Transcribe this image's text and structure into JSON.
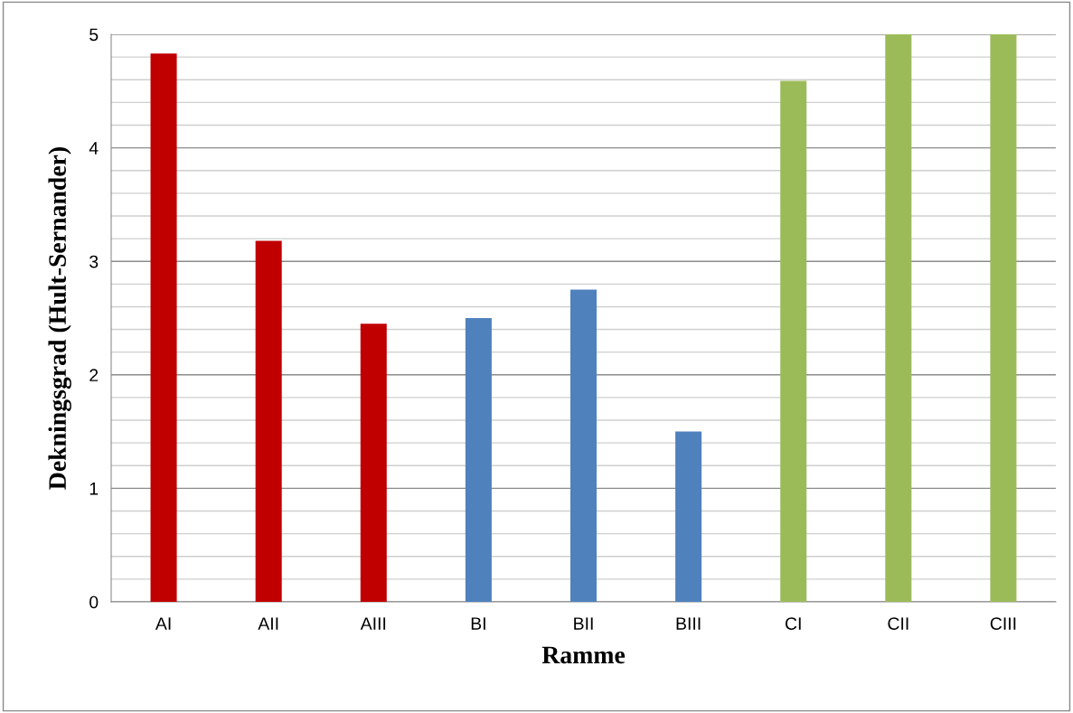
{
  "chart_data": {
    "type": "bar",
    "xlabel": "Ramme",
    "ylabel": "Dekningsgrad (Hult-Sernander)",
    "categories": [
      "AI",
      "AII",
      "AIII",
      "BI",
      "BII",
      "BIII",
      "CI",
      "CII",
      "CIII"
    ],
    "values": [
      4.83,
      3.18,
      2.45,
      2.5,
      2.75,
      1.5,
      4.59,
      5,
      5
    ],
    "colors": [
      "#c00000",
      "#c00000",
      "#c00000",
      "#4f81bd",
      "#4f81bd",
      "#4f81bd",
      "#9bbb59",
      "#9bbb59",
      "#9bbb59"
    ],
    "ylim": [
      0,
      5
    ],
    "yticks": [
      0,
      {
        "value": 0.2,
        "label": null
      },
      {
        "value": 0.4,
        "label": null
      },
      {
        "value": 0.6,
        "label": null
      },
      {
        "value": 0.8,
        "label": null
      },
      1,
      {
        "value": 1.2,
        "label": null
      },
      {
        "value": 1.4,
        "label": null
      },
      {
        "value": 1.6,
        "label": null
      },
      {
        "value": 1.8,
        "label": null
      },
      2,
      {
        "value": 2.2,
        "label": null
      },
      {
        "value": 2.4,
        "label": null
      },
      {
        "value": 2.6,
        "label": null
      },
      {
        "value": 2.8,
        "label": null
      },
      3,
      {
        "value": 3.2,
        "label": null
      },
      {
        "value": 3.4,
        "label": null
      },
      {
        "value": 3.6,
        "label": null
      },
      {
        "value": 3.8,
        "label": null
      },
      4,
      {
        "value": 4.2,
        "label": null
      },
      {
        "value": 4.4,
        "label": null
      },
      {
        "value": 4.6,
        "label": null
      },
      {
        "value": 4.8,
        "label": null
      },
      5
    ],
    "grid": "y"
  }
}
